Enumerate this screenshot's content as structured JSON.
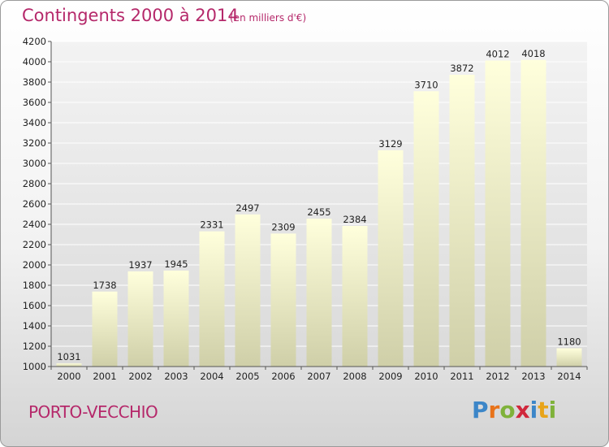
{
  "header": {
    "title": "Contingents 2000 à 2014",
    "unit": "(en milliers d'€)"
  },
  "footer": {
    "commune": "PORTO-VECCHIO",
    "logo": "Proxiti"
  },
  "colors": {
    "title": "#b5286a",
    "bar_top": "#ffffdc",
    "bar_bottom": "#cfcfa8",
    "grid": "#ffffff"
  },
  "chart_data": {
    "type": "bar",
    "title": "Contingents 2000 à 2014",
    "xlabel": "",
    "ylabel": "",
    "categories": [
      "2000",
      "2001",
      "2002",
      "2003",
      "2004",
      "2005",
      "2006",
      "2007",
      "2008",
      "2009",
      "2010",
      "2011",
      "2012",
      "2013",
      "2014"
    ],
    "values": [
      1031,
      1738,
      1937,
      1945,
      2331,
      2497,
      2309,
      2455,
      2384,
      3129,
      3710,
      3872,
      4012,
      4018,
      1180
    ],
    "ylim": [
      1000,
      4200
    ],
    "yticks": [
      1000,
      1200,
      1400,
      1600,
      1800,
      2000,
      2200,
      2400,
      2600,
      2800,
      3000,
      3200,
      3400,
      3600,
      3800,
      4000,
      4200
    ],
    "grid": true,
    "legend": "none"
  }
}
